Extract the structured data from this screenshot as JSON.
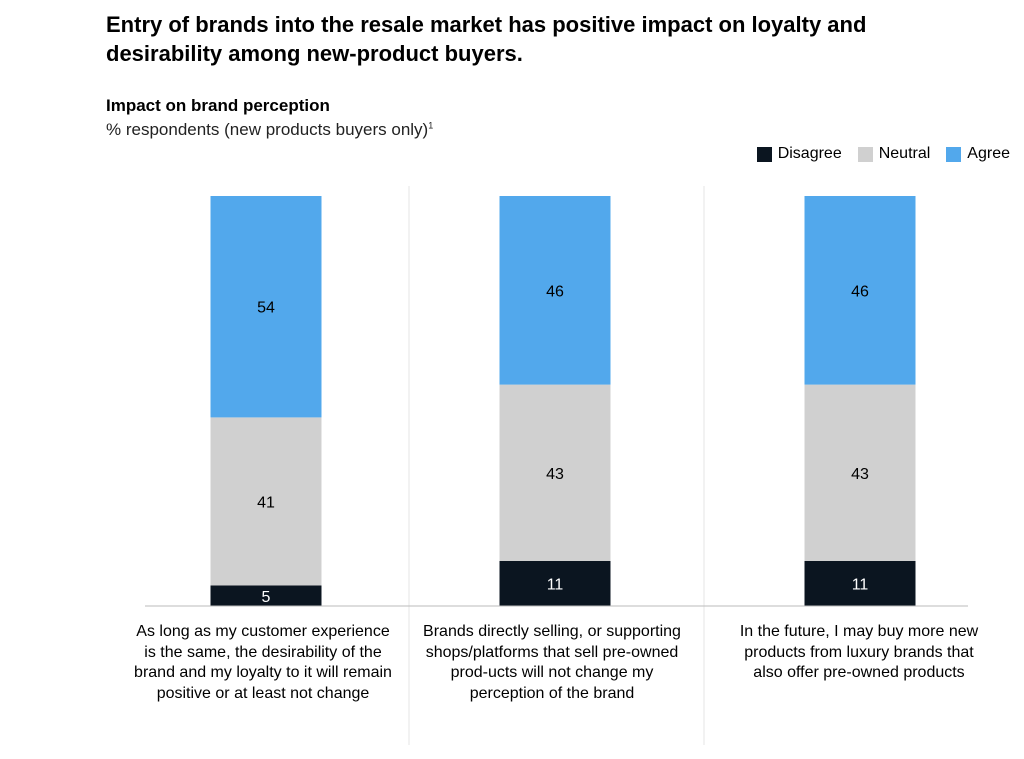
{
  "title": "Entry of brands into the resale market has positive impact on loyalty and desirability among new-product buyers.",
  "subtitle": "Impact on brand perception",
  "unit": "% respondents (new products buyers only)",
  "unit_footnote": "1",
  "colors": {
    "Disagree": "#0b1520",
    "Neutral": "#d0d0d0",
    "Agree": "#52a8ec"
  },
  "chart_data": {
    "type": "bar",
    "stacked": true,
    "categories": [
      "As long as my customer experience is the same, the desirability of the brand and my loyalty to it will remain positive or at least not change",
      "Brands directly selling, or supporting shops/platforms that sell pre-owned prod-ucts will not change my perception of the brand",
      "In the future, I may buy more new products from luxury brands that also offer pre-owned products"
    ],
    "series": [
      {
        "name": "Disagree",
        "values": [
          5,
          11,
          11
        ]
      },
      {
        "name": "Neutral",
        "values": [
          41,
          43,
          43
        ]
      },
      {
        "name": "Agree",
        "values": [
          54,
          46,
          46
        ]
      }
    ],
    "title": "Impact on brand perception",
    "ylabel": "% respondents (new products buyers only)",
    "ylim": [
      0,
      100
    ],
    "legend": "top-right",
    "grid": false
  }
}
